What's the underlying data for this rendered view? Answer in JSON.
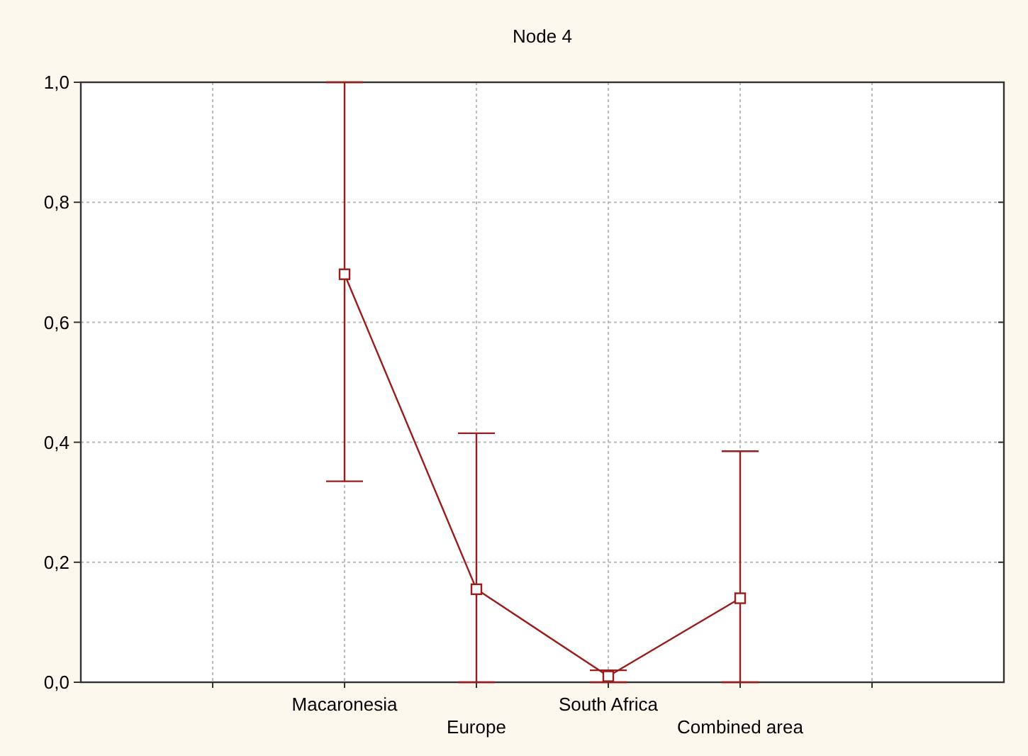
{
  "chart_data": {
    "type": "line",
    "title": "Node 4",
    "categories": [
      null,
      "Macaronesia",
      "Europe",
      "South Africa",
      "Combined area",
      null
    ],
    "series": [
      {
        "color": "#9b1c1c",
        "values": [
          null,
          0.68,
          0.155,
          0.01,
          0.14,
          null
        ],
        "errors": [
          null,
          [
            0.335,
            1.0
          ],
          [
            0,
            0.415
          ],
          [
            0,
            0.02
          ],
          [
            0,
            0.385
          ],
          null
        ]
      }
    ],
    "ylim": [
      0,
      1
    ],
    "yticks": [
      {
        "value": 0,
        "label": "0,0"
      },
      {
        "value": 0.2,
        "label": "0,2"
      },
      {
        "value": 0.4,
        "label": "0,4"
      },
      {
        "value": 0.6,
        "label": "0,6"
      },
      {
        "value": 0.8,
        "label": "0,8"
      },
      {
        "value": 1,
        "label": "1,0"
      }
    ],
    "grid": true,
    "marker": "square",
    "line_style": "solid"
  }
}
